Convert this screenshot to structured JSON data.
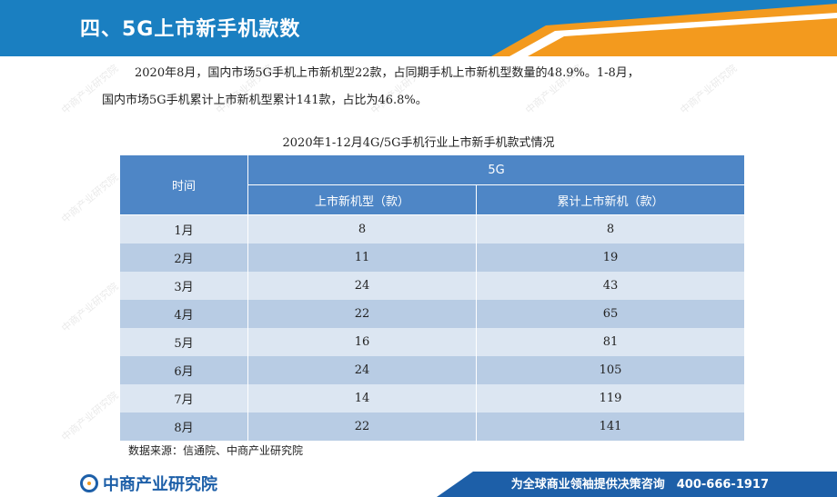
{
  "header": {
    "title": "四、5G上市新手机款数"
  },
  "paragraph": {
    "line1": "2020年8月，国内市场5G手机上市新机型22款，占同期手机上市新机型数量的48.9%。1-8月，",
    "line2": "国内市场5G手机累计上市新机型累计141款，占比为46.8%。"
  },
  "table": {
    "title": "2020年1-12月4G/5G手机行业上市新手机款式情况",
    "col_time": "时间",
    "col_group": "5G",
    "col_new": "上市新机型（款）",
    "col_cum": "累计上市新机（款）",
    "rows": [
      {
        "month": "1月",
        "new": "8",
        "cum": "8"
      },
      {
        "month": "2月",
        "new": "11",
        "cum": "19"
      },
      {
        "month": "3月",
        "new": "24",
        "cum": "43"
      },
      {
        "month": "4月",
        "new": "22",
        "cum": "65"
      },
      {
        "month": "5月",
        "new": "16",
        "cum": "81"
      },
      {
        "month": "6月",
        "new": "24",
        "cum": "105"
      },
      {
        "month": "7月",
        "new": "14",
        "cum": "119"
      },
      {
        "month": "8月",
        "new": "22",
        "cum": "141"
      }
    ]
  },
  "source": "数据来源：信通院、中商产业研究院",
  "footer": {
    "logo_text": "中商产业研究院",
    "slogan": "为全球商业领袖提供决策咨询　400-666-1917"
  },
  "watermark": "中商产业研究院",
  "colors": {
    "header_blue": "#1a7fc1",
    "accent_orange": "#f39a1e",
    "table_head": "#4e86c6"
  }
}
